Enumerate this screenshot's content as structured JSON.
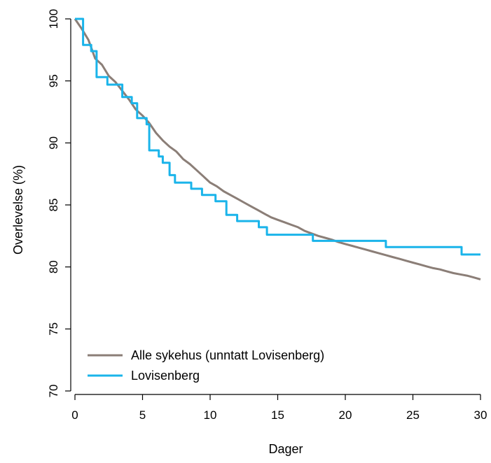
{
  "chart_data": {
    "type": "line",
    "step": true,
    "xlabel": "Dager",
    "ylabel": "Overlevelse (%)",
    "xlim": [
      0,
      30
    ],
    "ylim": [
      70,
      100
    ],
    "x_ticks": [
      0,
      5,
      10,
      15,
      20,
      25,
      30
    ],
    "y_ticks": [
      70,
      75,
      80,
      85,
      90,
      95,
      100
    ],
    "grid": false,
    "legend_position": "bottom-left",
    "series": [
      {
        "name": "Alle sykehus (unntatt Lovisenberg)",
        "color": "#8b7e77",
        "points": [
          [
            0,
            100
          ],
          [
            0.5,
            99.2
          ],
          [
            1,
            98.3
          ],
          [
            1.5,
            96.8
          ],
          [
            2,
            96.3
          ],
          [
            2.5,
            95.4
          ],
          [
            3,
            94.9
          ],
          [
            3.5,
            94.2
          ],
          [
            4,
            93.5
          ],
          [
            4.5,
            92.7
          ],
          [
            5,
            92.2
          ],
          [
            5.5,
            91.6
          ],
          [
            6,
            90.8
          ],
          [
            6.5,
            90.2
          ],
          [
            7,
            89.7
          ],
          [
            7.5,
            89.3
          ],
          [
            8,
            88.7
          ],
          [
            8.5,
            88.3
          ],
          [
            9,
            87.8
          ],
          [
            9.5,
            87.3
          ],
          [
            10,
            86.8
          ],
          [
            10.5,
            86.5
          ],
          [
            11,
            86.1
          ],
          [
            11.5,
            85.8
          ],
          [
            12,
            85.5
          ],
          [
            12.5,
            85.2
          ],
          [
            13,
            84.9
          ],
          [
            13.5,
            84.6
          ],
          [
            14,
            84.3
          ],
          [
            14.5,
            84.0
          ],
          [
            15,
            83.8
          ],
          [
            15.5,
            83.6
          ],
          [
            16,
            83.4
          ],
          [
            16.5,
            83.2
          ],
          [
            17,
            82.9
          ],
          [
            17.5,
            82.7
          ],
          [
            18,
            82.5
          ],
          [
            18.5,
            82.35
          ],
          [
            19,
            82.2
          ],
          [
            19.5,
            82.0
          ],
          [
            20,
            81.85
          ],
          [
            20.5,
            81.7
          ],
          [
            21,
            81.55
          ],
          [
            21.5,
            81.4
          ],
          [
            22,
            81.25
          ],
          [
            22.5,
            81.1
          ],
          [
            23,
            80.95
          ],
          [
            23.5,
            80.8
          ],
          [
            24,
            80.65
          ],
          [
            24.5,
            80.5
          ],
          [
            25,
            80.35
          ],
          [
            25.5,
            80.2
          ],
          [
            26,
            80.05
          ],
          [
            26.5,
            79.9
          ],
          [
            27,
            79.8
          ],
          [
            27.5,
            79.65
          ],
          [
            28,
            79.5
          ],
          [
            28.5,
            79.4
          ],
          [
            29,
            79.3
          ],
          [
            29.5,
            79.15
          ],
          [
            30,
            79.0
          ]
        ]
      },
      {
        "name": "Lovisenberg",
        "color": "#1ab4ea",
        "points": [
          [
            0,
            100
          ],
          [
            0.6,
            97.9
          ],
          [
            1.2,
            97.4
          ],
          [
            1.6,
            95.3
          ],
          [
            2.4,
            94.7
          ],
          [
            3.5,
            93.7
          ],
          [
            4.2,
            93.2
          ],
          [
            4.6,
            92.0
          ],
          [
            5.3,
            91.5
          ],
          [
            5.5,
            89.4
          ],
          [
            6.2,
            88.9
          ],
          [
            6.5,
            88.4
          ],
          [
            7.0,
            87.4
          ],
          [
            7.4,
            86.8
          ],
          [
            8.6,
            86.3
          ],
          [
            9.4,
            85.8
          ],
          [
            10.4,
            85.3
          ],
          [
            11.2,
            84.2
          ],
          [
            12.0,
            83.7
          ],
          [
            13.6,
            83.2
          ],
          [
            14.2,
            82.6
          ],
          [
            17.6,
            82.1
          ],
          [
            23.0,
            81.6
          ],
          [
            28.6,
            81.0
          ],
          [
            30,
            81.0
          ]
        ]
      }
    ]
  }
}
